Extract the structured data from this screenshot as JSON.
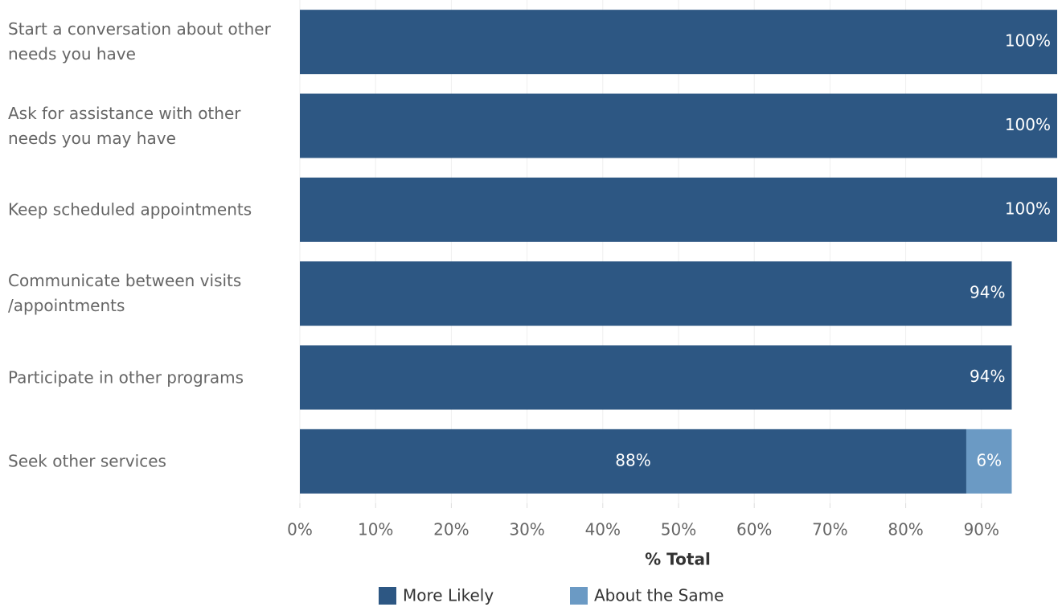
{
  "chart_data": {
    "type": "stacked-bar-horizontal",
    "categories": [
      "Start a conversation about other needs you have",
      "Ask for assistance with other needs you may have",
      "Keep scheduled appointments",
      "Communicate between visits /appointments",
      "Participate in other programs",
      "Seek other services"
    ],
    "series": [
      {
        "name": "More Likely",
        "color": "#2d5783",
        "values": [
          100,
          100,
          100,
          94,
          94,
          88
        ],
        "value_labels": [
          "100%",
          "100%",
          "100%",
          "94%",
          "94%",
          "88%"
        ]
      },
      {
        "name": "About the Same",
        "color": "#6b9ac4",
        "values": [
          null,
          null,
          null,
          null,
          null,
          6
        ],
        "value_labels": [
          null,
          null,
          null,
          null,
          null,
          "6%"
        ]
      }
    ],
    "xlim": [
      0,
      100
    ],
    "xticks": [
      {
        "value": 0,
        "label": "0%"
      },
      {
        "value": 10,
        "label": "10%"
      },
      {
        "value": 20,
        "label": "20%"
      },
      {
        "value": 30,
        "label": "30%"
      },
      {
        "value": 40,
        "label": "40%"
      },
      {
        "value": 50,
        "label": "50%"
      },
      {
        "value": 60,
        "label": "60%"
      },
      {
        "value": 70,
        "label": "70%"
      },
      {
        "value": 80,
        "label": "80%"
      },
      {
        "value": 90,
        "label": "90%"
      }
    ],
    "xlabel": "% Total",
    "grid": true
  }
}
